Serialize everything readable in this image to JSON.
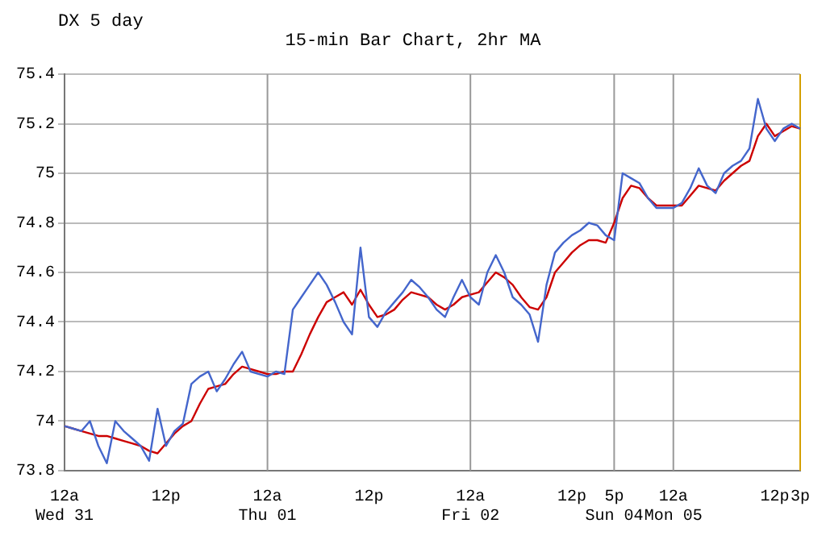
{
  "chart_data": {
    "type": "line",
    "title": "15-min Bar Chart, 2hr MA",
    "subtitle": "DX 5 day",
    "categories": [
      "12a\nWed 31",
      null,
      null,
      null,
      null,
      null,
      null,
      null,
      null,
      null,
      null,
      null,
      "12p",
      null,
      null,
      null,
      null,
      null,
      null,
      null,
      null,
      null,
      null,
      null,
      "12a\nThu 01",
      null,
      null,
      null,
      null,
      null,
      null,
      null,
      null,
      null,
      null,
      null,
      "12p",
      null,
      null,
      null,
      null,
      null,
      null,
      null,
      null,
      null,
      null,
      null,
      "12a\nFri 02",
      null,
      null,
      null,
      null,
      null,
      null,
      null,
      null,
      null,
      null,
      null,
      "12p",
      null,
      null,
      null,
      null,
      "5p\nSun 04",
      null,
      null,
      null,
      null,
      null,
      null,
      "12a\nMon 05",
      null,
      null,
      null,
      null,
      null,
      null,
      null,
      null,
      null,
      null,
      null,
      "12p",
      null,
      null,
      "3p"
    ],
    "ylim": [
      73.8,
      75.4
    ],
    "yticks": [
      73.8,
      74,
      74.2,
      74.4,
      74.6,
      74.8,
      75,
      75.2,
      75.4
    ],
    "grid": "y",
    "marker": "none",
    "line_style": "solid",
    "ref_lines": [
      {
        "axis": "x",
        "value": "12a\nThu 01",
        "color": "#999999"
      },
      {
        "axis": "x",
        "value": "12a\nFri 02",
        "color": "#999999"
      },
      {
        "axis": "x",
        "value": "5p\nSun 04",
        "color": "#999999"
      },
      {
        "axis": "x",
        "value": "12a\nMon 05",
        "color": "#999999"
      },
      {
        "axis": "x",
        "value": "3p",
        "color": "#d4a000"
      }
    ],
    "series": [
      {
        "color": "#4466cc",
        "values": [
          73.98,
          73.97,
          73.96,
          74.0,
          73.9,
          73.83,
          74.0,
          73.96,
          73.93,
          73.9,
          73.84,
          74.05,
          73.9,
          73.96,
          73.99,
          74.15,
          74.18,
          74.2,
          74.12,
          74.17,
          74.23,
          74.28,
          74.2,
          74.19,
          74.18,
          74.2,
          74.19,
          74.45,
          74.5,
          74.55,
          74.6,
          74.55,
          74.48,
          74.4,
          74.35,
          74.7,
          74.42,
          74.38,
          74.44,
          74.48,
          74.52,
          74.57,
          74.54,
          74.5,
          74.45,
          74.42,
          74.5,
          74.57,
          74.5,
          74.47,
          74.6,
          74.67,
          74.6,
          74.5,
          74.47,
          74.43,
          74.32,
          74.55,
          74.68,
          74.72,
          74.75,
          74.77,
          74.8,
          74.79,
          74.75,
          74.73,
          75.0,
          74.98,
          74.96,
          74.9,
          74.86,
          74.86,
          74.86,
          74.88,
          74.94,
          75.02,
          74.95,
          74.92,
          75.0,
          75.03,
          75.05,
          75.1,
          75.3,
          75.18,
          75.13,
          75.18,
          75.2,
          75.18
        ]
      },
      {
        "color": "#cc0000",
        "values": [
          73.98,
          73.97,
          73.96,
          73.95,
          73.94,
          73.94,
          73.93,
          73.92,
          73.91,
          73.9,
          73.88,
          73.87,
          73.91,
          73.95,
          73.98,
          74.0,
          74.07,
          74.13,
          74.14,
          74.15,
          74.19,
          74.22,
          74.21,
          74.2,
          74.19,
          74.19,
          74.2,
          74.2,
          74.27,
          74.35,
          74.42,
          74.48,
          74.5,
          74.52,
          74.47,
          74.53,
          74.47,
          74.42,
          74.43,
          74.45,
          74.49,
          74.52,
          74.51,
          74.5,
          74.47,
          74.45,
          74.47,
          74.5,
          74.51,
          74.52,
          74.56,
          74.6,
          74.58,
          74.55,
          74.5,
          74.46,
          74.45,
          74.5,
          74.6,
          74.64,
          74.68,
          74.71,
          74.73,
          74.73,
          74.72,
          74.8,
          74.9,
          74.95,
          74.94,
          74.9,
          74.87,
          74.87,
          74.87,
          74.87,
          74.91,
          74.95,
          74.94,
          74.93,
          74.97,
          75.0,
          75.03,
          75.05,
          75.15,
          75.2,
          75.15,
          75.17,
          75.19,
          75.18
        ]
      }
    ]
  }
}
